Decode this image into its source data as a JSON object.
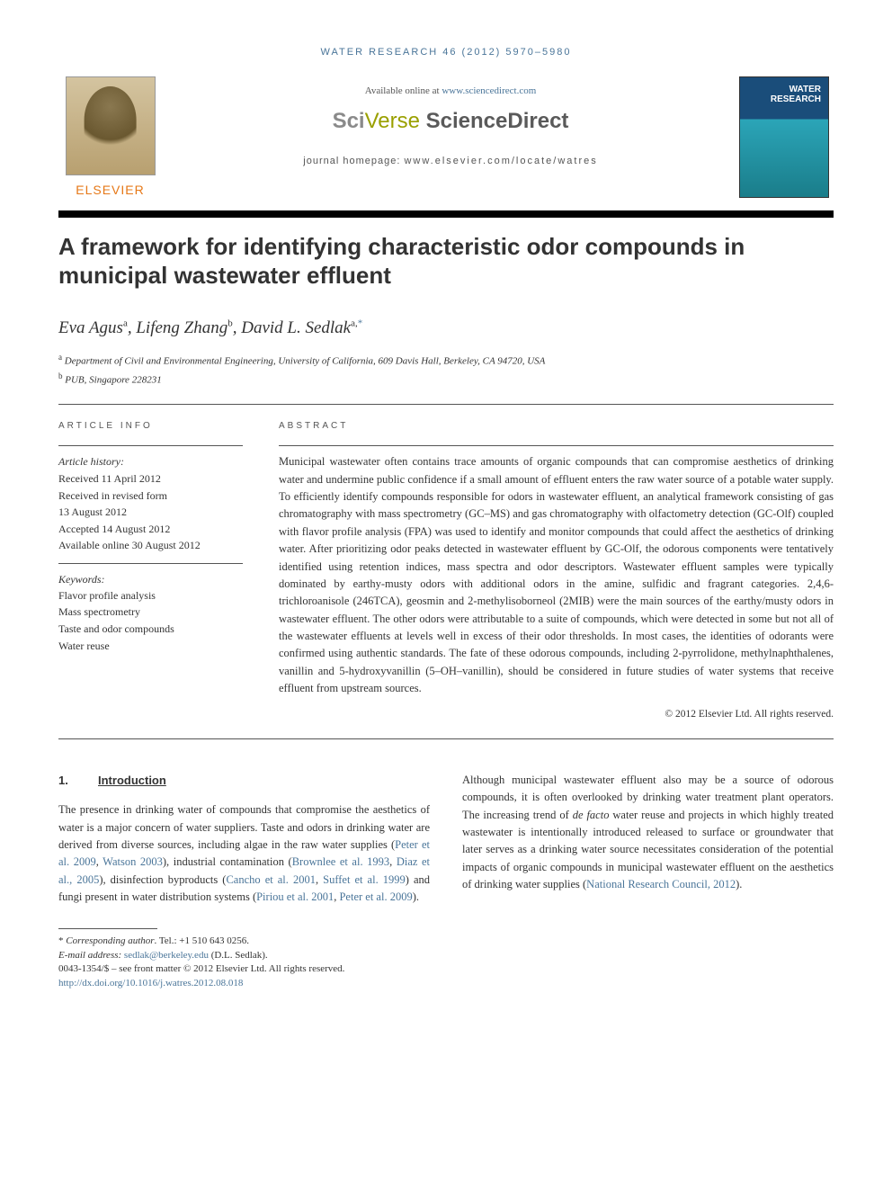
{
  "running_head": "WATER RESEARCH 46 (2012) 5970–5980",
  "header": {
    "elsevier": "ELSEVIER",
    "available_prefix": "Available online at ",
    "available_url": "www.sciencedirect.com",
    "sv_sci": "Sci",
    "sv_verse": "Verse",
    "sv_direct": " ScienceDirect",
    "journal_home_label": "journal homepage: ",
    "journal_home_url": "www.elsevier.com/locate/watres",
    "cover_line1": "WATER",
    "cover_line2": "RESEARCH"
  },
  "title": "A framework for identifying characteristic odor compounds in municipal wastewater effluent",
  "authors_html": "Eva Agus",
  "authors": {
    "a1_name": "Eva Agus",
    "a1_sup": "a",
    "a2_name": "Lifeng Zhang",
    "a2_sup": "b",
    "a3_name": "David L. Sedlak",
    "a3_sup": "a,",
    "a3_corr": "*"
  },
  "affiliations": {
    "a": "Department of Civil and Environmental Engineering, University of California, 609 Davis Hall, Berkeley, CA 94720, USA",
    "b": "PUB, Singapore 228231"
  },
  "info": {
    "label": "ARTICLE INFO",
    "history_head": "Article history:",
    "received": "Received 11 April 2012",
    "revised1": "Received in revised form",
    "revised2": "13 August 2012",
    "accepted": "Accepted 14 August 2012",
    "online": "Available online 30 August 2012",
    "kw_head": "Keywords:",
    "kws": [
      "Flavor profile analysis",
      "Mass spectrometry",
      "Taste and odor compounds",
      "Water reuse"
    ]
  },
  "abstract": {
    "label": "ABSTRACT",
    "text": "Municipal wastewater often contains trace amounts of organic compounds that can compromise aesthetics of drinking water and undermine public confidence if a small amount of effluent enters the raw water source of a potable water supply. To efficiently identify compounds responsible for odors in wastewater effluent, an analytical framework consisting of gas chromatography with mass spectrometry (GC–MS) and gas chromatography with olfactometry detection (GC-Olf) coupled with flavor profile analysis (FPA) was used to identify and monitor compounds that could affect the aesthetics of drinking water. After prioritizing odor peaks detected in wastewater effluent by GC-Olf, the odorous components were tentatively identified using retention indices, mass spectra and odor descriptors. Wastewater effluent samples were typically dominated by earthy-musty odors with additional odors in the amine, sulfidic and fragrant categories. 2,4,6-trichloroanisole (246TCA), geosmin and 2-methylisoborneol (2MIB) were the main sources of the earthy/musty odors in wastewater effluent. The other odors were attributable to a suite of compounds, which were detected in some but not all of the wastewater effluents at levels well in excess of their odor thresholds. In most cases, the identities of odorants were confirmed using authentic standards. The fate of these odorous compounds, including 2-pyrrolidone, methylnaphthalenes, vanillin and 5-hydroxyvanillin (5–OH–vanillin), should be considered in future studies of water systems that receive effluent from upstream sources.",
    "copyright": "© 2012 Elsevier Ltd. All rights reserved."
  },
  "section1": {
    "num": "1.",
    "title": "Introduction",
    "col1": "The presence in drinking water of compounds that compromise the aesthetics of water is a major concern of water suppliers. Taste and odors in drinking water are derived from diverse sources, including algae in the raw water supplies (Peter et al. 2009, Watson 2003), industrial contamination (Brownlee et al. 1993, Diaz et al., 2005), disinfection byproducts (Cancho et al. 2001, Suffet et al. 1999) and fungi present in water distribution systems (Piriou et al. 2001, Peter et al. 2009).",
    "col1_refs": [
      "Peter et al. 2009",
      "Watson 2003",
      "Brownlee et al. 1993",
      "Diaz et al., 2005",
      "Cancho et al. 2001",
      "Suffet et al. 1999",
      "Piriou et al. 2001",
      "Peter et al. 2009"
    ],
    "col2_pre": "Although municipal wastewater effluent also may be a source of odorous compounds, it is often overlooked by drinking water treatment plant operators. The increasing trend of ",
    "col2_defacto": "de facto",
    "col2_post": " water reuse and projects in which highly treated wastewater is intentionally introduced released to surface or groundwater that later serves as a drinking water source necessitates consideration of the potential impacts of organic compounds in municipal wastewater effluent on the aesthetics of drinking water supplies (",
    "col2_ref": "National Research Council, 2012",
    "col2_tail": ")."
  },
  "footnote": {
    "corr_label": "Corresponding author",
    "corr_tel": ". Tel.: +1 510 643 0256.",
    "email_label": "E-mail address: ",
    "email": "sedlak@berkeley.edu",
    "email_paren": " (D.L. Sedlak).",
    "front_matter": "0043-1354/$ – see front matter © 2012 Elsevier Ltd. All rights reserved.",
    "doi": "http://dx.doi.org/10.1016/j.watres.2012.08.018"
  },
  "colors": {
    "link": "#4a7599",
    "orange": "#e67817",
    "rule": "#000000"
  }
}
